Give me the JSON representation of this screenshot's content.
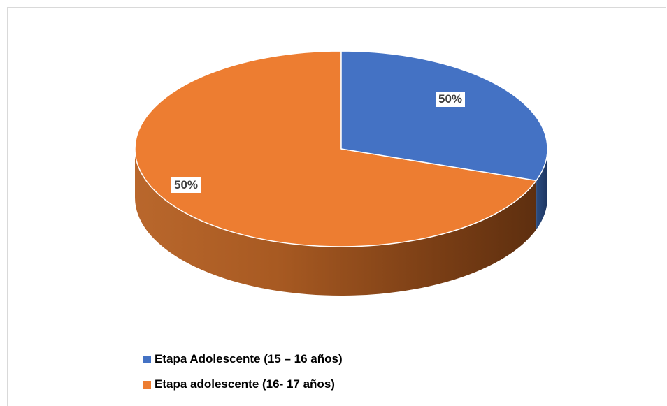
{
  "chart_data": {
    "type": "pie",
    "title": "",
    "categories": [
      "Etapa Adolescente (15 – 16 años)",
      "Etapa adolescente (16- 17 años)"
    ],
    "values": [
      50,
      50
    ],
    "data_labels": [
      "50%",
      "50%"
    ],
    "colors": [
      "#4472C4",
      "#ED7D31"
    ],
    "legend": "bottom-left",
    "style": "3d-pie"
  },
  "legend": {
    "items": [
      {
        "label": "Etapa Adolescente (15 – 16 años)",
        "color": "#4472C4"
      },
      {
        "label": "Etapa adolescente (16- 17 años)",
        "color": "#ED7D31"
      }
    ]
  }
}
